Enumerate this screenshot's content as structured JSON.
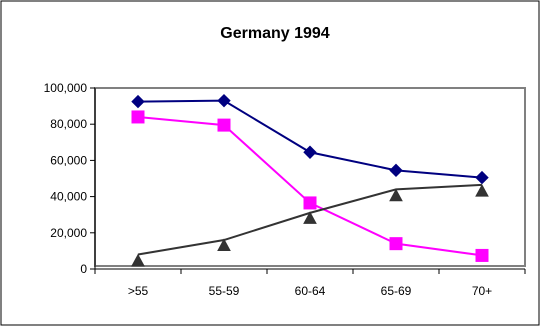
{
  "chart_data": {
    "type": "line",
    "title": "Germany 1994",
    "categories": [
      ">55",
      "55-59",
      "60-64",
      "65-69",
      "70+"
    ],
    "ylim": [
      0,
      100000
    ],
    "yticks": [
      0,
      20000,
      40000,
      60000,
      80000,
      100000
    ],
    "ytick_labels": [
      "0",
      "20,000",
      "40,000",
      "60,000",
      "80,000",
      "100,000"
    ],
    "grid": false,
    "legend": "none",
    "series": [
      {
        "values": [
          92500,
          93000,
          64500,
          54500,
          50500
        ],
        "color": "#000080",
        "marker": "diamond"
      },
      {
        "values": [
          84000,
          79500,
          36500,
          14000,
          7500
        ],
        "color": "#ff00ff",
        "marker": "square"
      },
      {
        "line_values": [
          8000,
          16000,
          31000,
          44000,
          46500
        ],
        "marker_values": [
          4500,
          13000,
          28000,
          40500,
          43000
        ],
        "color": "#333333",
        "marker": "triangle"
      }
    ]
  }
}
